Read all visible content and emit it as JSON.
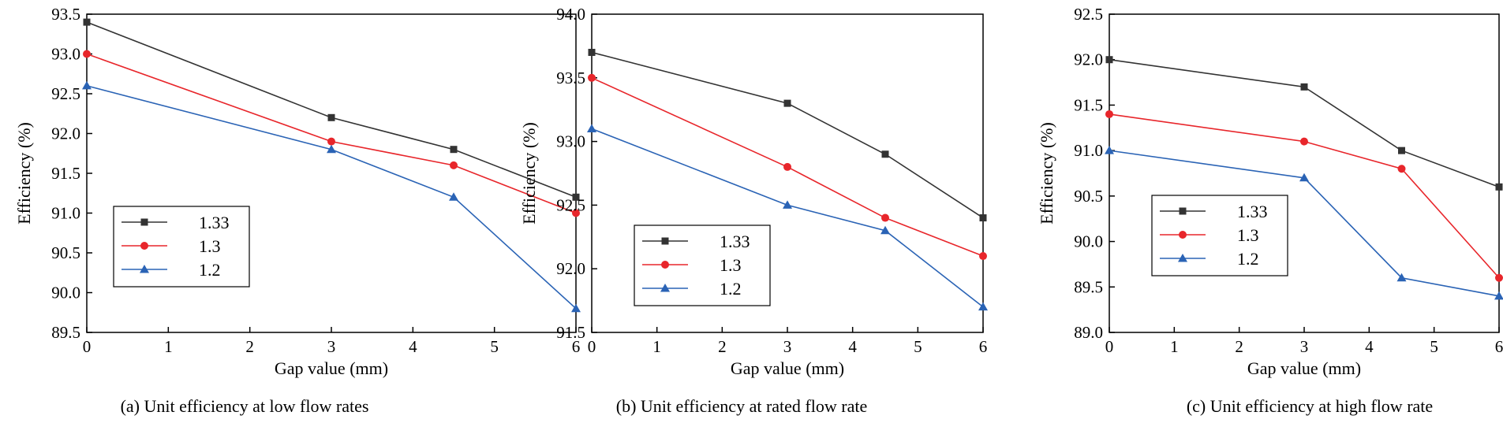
{
  "chart_data": [
    {
      "type": "line",
      "caption": "(a) Unit efficiency at low flow rates",
      "xlabel": "Gap value (mm)",
      "ylabel": "Efficiency (%)",
      "xlim": [
        0,
        6
      ],
      "ylim": [
        89.5,
        93.5
      ],
      "xticks": [
        "0",
        "1",
        "2",
        "3",
        "4",
        "5",
        "6"
      ],
      "yticks": [
        "89.5",
        "90.0",
        "90.5",
        "91.0",
        "91.5",
        "92.0",
        "92.5",
        "93.0",
        "93.5"
      ],
      "x": [
        0,
        3,
        4.5,
        6
      ],
      "legend_position": "bottom-left",
      "series": [
        {
          "name": "1.33",
          "values": [
            93.4,
            92.2,
            91.8,
            91.2
          ],
          "color": "#333333",
          "marker": "square"
        },
        {
          "name": "1.3",
          "values": [
            93.0,
            91.9,
            91.6,
            91.0
          ],
          "color": "#e8262b",
          "marker": "circle"
        },
        {
          "name": "1.2",
          "values": [
            92.6,
            91.8,
            91.2,
            89.8
          ],
          "color": "#2a63b5",
          "marker": "triangle"
        }
      ]
    },
    {
      "type": "line",
      "caption": "(b) Unit efficiency at rated flow rate",
      "xlabel": "Gap value (mm)",
      "ylabel": "Efficiency (%)",
      "xlim": [
        0,
        6
      ],
      "ylim": [
        91.5,
        94.0
      ],
      "xticks": [
        "0",
        "1",
        "2",
        "3",
        "4",
        "5",
        "6"
      ],
      "yticks": [
        "91.5",
        "92.0",
        "92.5",
        "93.0",
        "93.5",
        "94.0"
      ],
      "x": [
        0,
        3,
        4.5,
        6
      ],
      "legend_position": "bottom-left",
      "series": [
        {
          "name": "1.33",
          "values": [
            93.7,
            93.3,
            92.9,
            92.4
          ],
          "color": "#333333",
          "marker": "square"
        },
        {
          "name": "1.3",
          "values": [
            93.5,
            92.8,
            92.4,
            92.1
          ],
          "color": "#e8262b",
          "marker": "circle"
        },
        {
          "name": "1.2",
          "values": [
            93.1,
            92.5,
            92.3,
            91.7
          ],
          "color": "#2a63b5",
          "marker": "triangle"
        }
      ]
    },
    {
      "type": "line",
      "caption": "(c) Unit efficiency at high flow rate",
      "xlabel": "Gap value (mm)",
      "ylabel": "Efficiency (%)",
      "xlim": [
        0,
        6
      ],
      "ylim": [
        89.0,
        92.5
      ],
      "xticks": [
        "0",
        "1",
        "2",
        "3",
        "4",
        "5",
        "6"
      ],
      "yticks": [
        "89.0",
        "89.5",
        "90.0",
        "90.5",
        "91.0",
        "91.5",
        "92.0",
        "92.5"
      ],
      "x": [
        0,
        3,
        4.5,
        6
      ],
      "legend_position": "bottom-left",
      "series": [
        {
          "name": "1.33",
          "values": [
            92.0,
            91.7,
            91.0,
            90.6
          ],
          "color": "#333333",
          "marker": "square"
        },
        {
          "name": "1.3",
          "values": [
            91.4,
            91.1,
            90.8,
            89.6
          ],
          "color": "#e8262b",
          "marker": "circle"
        },
        {
          "name": "1.2",
          "values": [
            91.0,
            90.7,
            89.6,
            89.4
          ],
          "color": "#2a63b5",
          "marker": "triangle"
        }
      ]
    }
  ]
}
